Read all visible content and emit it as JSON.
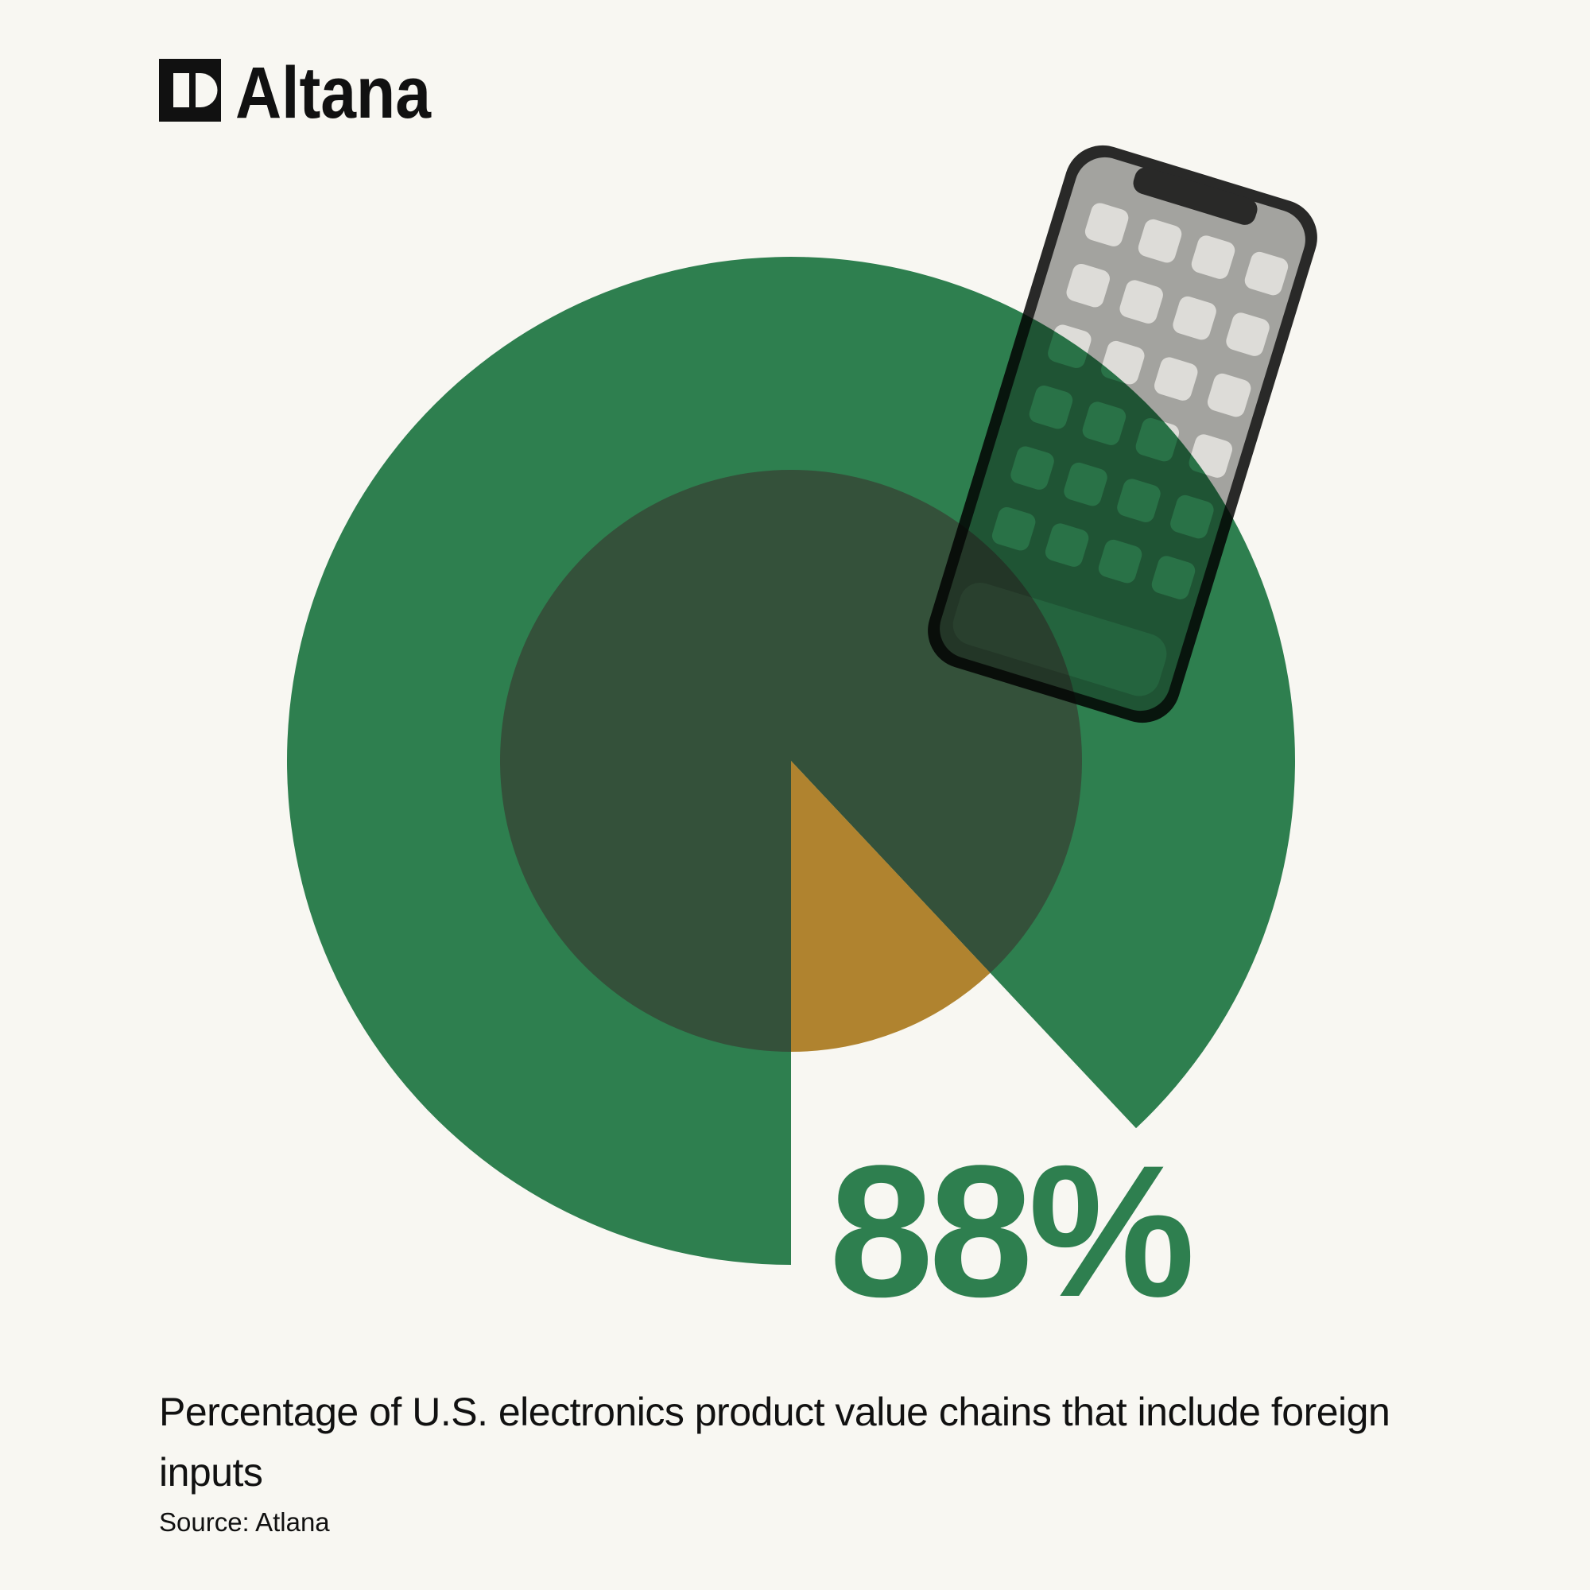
{
  "brand": "Altana",
  "chart_data": {
    "type": "pie",
    "values": [
      88
    ],
    "value_labels": [
      "88%"
    ],
    "color": "#2e7f4f",
    "inner_color": "#34513a",
    "rest_color": "#b0832f",
    "caption": "Percentage of U.S. electronics product value chains that include foreign inputs",
    "source": "Source: Atlana"
  }
}
